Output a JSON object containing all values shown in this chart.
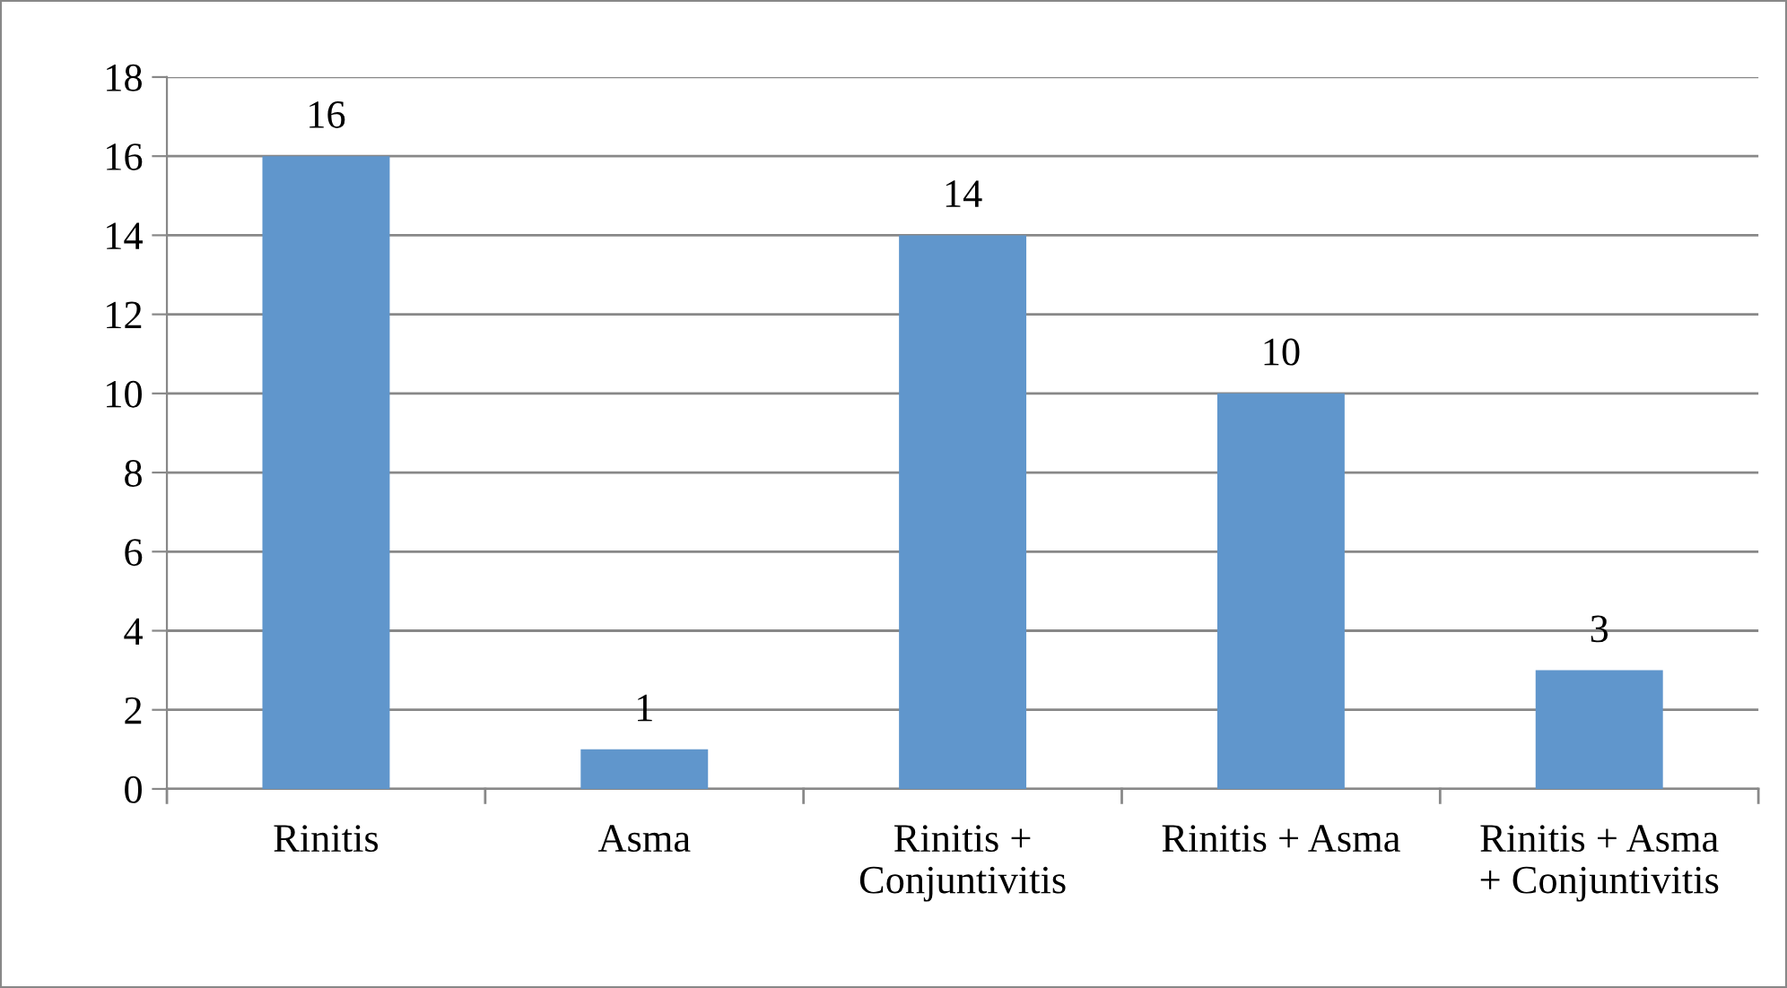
{
  "chart_data": {
    "type": "bar",
    "categories": [
      "Rinitis",
      "Asma",
      "Rinitis +\nConjuntivitis",
      "Rinitis + Asma",
      "Rinitis + Asma\n+ Conjuntivitis"
    ],
    "values": [
      16,
      1,
      14,
      10,
      3
    ],
    "color": "#6096cc",
    "ylim": [
      0,
      18
    ],
    "yticks": [
      0,
      2,
      4,
      6,
      8,
      10,
      12,
      14,
      16,
      18
    ],
    "grid": "y",
    "data_labels": true,
    "legend": false
  }
}
